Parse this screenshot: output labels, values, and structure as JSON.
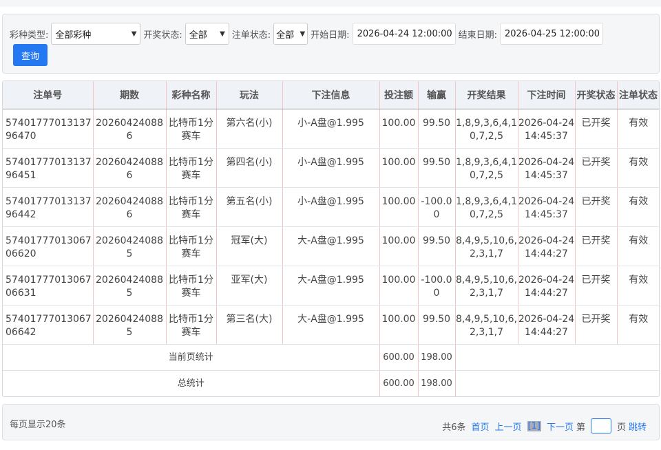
{
  "filters": {
    "lottery_type_label": "彩种类型:",
    "lottery_type_value": "全部彩种",
    "draw_status_label": "开奖状态:",
    "draw_status_value": "全部",
    "bet_status_label": "注单状态:",
    "bet_status_value": "全部",
    "start_date_label": "开始日期:",
    "start_date_value": "2026-04-24 12:00:00",
    "end_date_label": "结束日期:",
    "end_date_value": "2026-04-25 12:00:00",
    "query_label": "查询"
  },
  "table": {
    "headers": [
      "注单号",
      "期数",
      "彩种名称",
      "玩法",
      "下注信息",
      "投注额",
      "输赢",
      "开奖结果",
      "下注时间",
      "开奖状态",
      "注单状态"
    ],
    "rows": [
      [
        "5740177701313796470",
        "202604240886",
        "比特币1分赛车",
        "第六名(小)",
        "小-A盘@1.995",
        "100.00",
        "99.50",
        "1,8,9,3,6,4,10,7,2,5",
        "2026-04-24 14:45:37",
        "已开奖",
        "有效"
      ],
      [
        "5740177701313796451",
        "202604240886",
        "比特币1分赛车",
        "第四名(小)",
        "小-A盘@1.995",
        "100.00",
        "99.50",
        "1,8,9,3,6,4,10,7,2,5",
        "2026-04-24 14:45:37",
        "已开奖",
        "有效"
      ],
      [
        "5740177701313796442",
        "202604240886",
        "比特币1分赛车",
        "第五名(小)",
        "小-A盘@1.995",
        "100.00",
        "-100.00",
        "1,8,9,3,6,4,10,7,2,5",
        "2026-04-24 14:45:37",
        "已开奖",
        "有效"
      ],
      [
        "5740177701306706620",
        "202604240885",
        "比特币1分赛车",
        "冠军(大)",
        "大-A盘@1.995",
        "100.00",
        "99.50",
        "8,4,9,5,10,6,2,3,1,7",
        "2026-04-24 14:44:27",
        "已开奖",
        "有效"
      ],
      [
        "5740177701306706631",
        "202604240885",
        "比特币1分赛车",
        "亚军(大)",
        "大-A盘@1.995",
        "100.00",
        "-100.00",
        "8,4,9,5,10,6,2,3,1,7",
        "2026-04-24 14:44:27",
        "已开奖",
        "有效"
      ],
      [
        "5740177701306706642",
        "202604240885",
        "比特币1分赛车",
        "第三名(大)",
        "大-A盘@1.995",
        "100.00",
        "99.50",
        "8,4,9,5,10,6,2,3,1,7",
        "2026-04-24 14:44:27",
        "已开奖",
        "有效"
      ]
    ],
    "page_summary": {
      "label": "当前页统计",
      "amount": "600.00",
      "win": "198.00"
    },
    "total_summary": {
      "label": "总统计",
      "amount": "600.00",
      "win": "198.00"
    }
  },
  "pager": {
    "per_page": "每页显示20条",
    "total": "共6条",
    "first": "首页",
    "prev": "上一页",
    "current": "[1]",
    "next": "下一页",
    "page_prefix": "第",
    "page_suffix": "页",
    "go": "跳转"
  },
  "colors": {
    "accent": "#2478f2"
  }
}
